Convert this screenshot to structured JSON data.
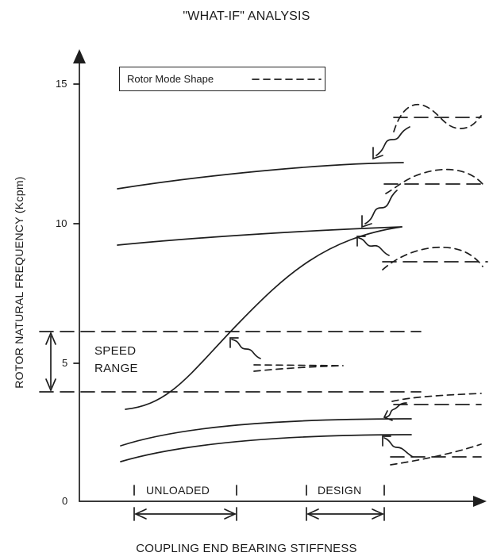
{
  "title": "\"WHAT-IF\" ANALYSIS",
  "y_axis_label": "ROTOR NATURAL FREQUENCY (Kcpm)",
  "x_axis_label": "COUPLING END BEARING STIFFNESS",
  "y_ticks": [
    "15",
    "10",
    "5",
    "0"
  ],
  "legend": {
    "label": "Rotor Mode Shape"
  },
  "speed_range": {
    "line1": "SPEED",
    "line2": "RANGE"
  },
  "ranges": {
    "unloaded": "UNLOADED",
    "design": "DESIGN"
  }
}
